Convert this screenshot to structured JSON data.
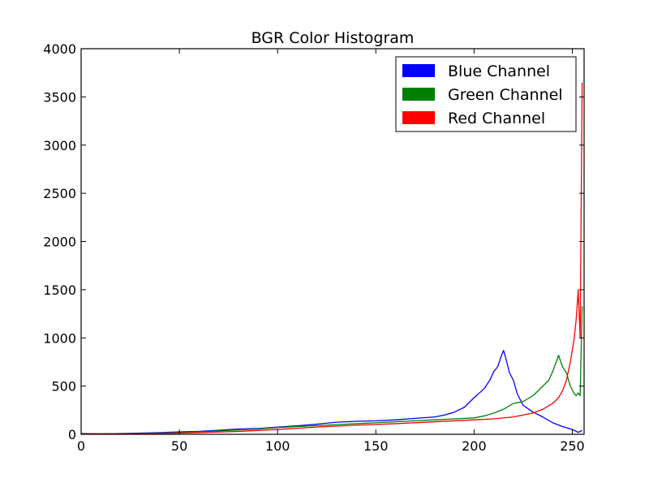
{
  "chart_data": {
    "type": "line",
    "title": "BGR Color Histogram",
    "xlabel": "",
    "ylabel": "",
    "xlim": [
      0,
      256
    ],
    "ylim": [
      0,
      4000
    ],
    "xticks": [
      0,
      50,
      100,
      150,
      200,
      250
    ],
    "yticks": [
      0,
      500,
      1000,
      1500,
      2000,
      2500,
      3000,
      3500,
      4000
    ],
    "grid": false,
    "legend": {
      "placement": "top-right",
      "entries": [
        {
          "label": "Blue Channel",
          "color": "#0000ff"
        },
        {
          "label": "Green Channel",
          "color": "#008000"
        },
        {
          "label": "Red Channel",
          "color": "#ff0000"
        }
      ]
    },
    "series": [
      {
        "name": "Blue Channel",
        "color": "#0000ff",
        "points": [
          [
            0,
            8
          ],
          [
            10,
            5
          ],
          [
            20,
            8
          ],
          [
            30,
            12
          ],
          [
            40,
            18
          ],
          [
            50,
            25
          ],
          [
            60,
            30
          ],
          [
            70,
            42
          ],
          [
            80,
            55
          ],
          [
            90,
            60
          ],
          [
            100,
            75
          ],
          [
            110,
            88
          ],
          [
            120,
            105
          ],
          [
            130,
            125
          ],
          [
            140,
            135
          ],
          [
            150,
            140
          ],
          [
            160,
            150
          ],
          [
            170,
            165
          ],
          [
            180,
            180
          ],
          [
            185,
            200
          ],
          [
            190,
            230
          ],
          [
            195,
            280
          ],
          [
            200,
            380
          ],
          [
            205,
            470
          ],
          [
            208,
            560
          ],
          [
            210,
            650
          ],
          [
            212,
            700
          ],
          [
            214,
            820
          ],
          [
            215,
            870
          ],
          [
            216,
            800
          ],
          [
            218,
            640
          ],
          [
            220,
            560
          ],
          [
            222,
            420
          ],
          [
            225,
            300
          ],
          [
            230,
            230
          ],
          [
            235,
            180
          ],
          [
            240,
            120
          ],
          [
            245,
            80
          ],
          [
            250,
            50
          ],
          [
            253,
            20
          ],
          [
            255,
            40
          ]
        ]
      },
      {
        "name": "Green Channel",
        "color": "#008000",
        "points": [
          [
            0,
            5
          ],
          [
            10,
            5
          ],
          [
            20,
            6
          ],
          [
            30,
            8
          ],
          [
            40,
            12
          ],
          [
            50,
            18
          ],
          [
            60,
            25
          ],
          [
            70,
            35
          ],
          [
            80,
            45
          ],
          [
            90,
            55
          ],
          [
            100,
            70
          ],
          [
            110,
            80
          ],
          [
            120,
            90
          ],
          [
            130,
            100
          ],
          [
            140,
            110
          ],
          [
            150,
            120
          ],
          [
            160,
            130
          ],
          [
            170,
            140
          ],
          [
            180,
            150
          ],
          [
            190,
            160
          ],
          [
            200,
            170
          ],
          [
            205,
            190
          ],
          [
            210,
            220
          ],
          [
            215,
            260
          ],
          [
            220,
            320
          ],
          [
            225,
            340
          ],
          [
            230,
            400
          ],
          [
            235,
            500
          ],
          [
            238,
            560
          ],
          [
            240,
            650
          ],
          [
            242,
            760
          ],
          [
            243,
            820
          ],
          [
            245,
            700
          ],
          [
            247,
            640
          ],
          [
            249,
            500
          ],
          [
            251,
            420
          ],
          [
            252,
            400
          ],
          [
            253,
            430
          ],
          [
            254,
            400
          ],
          [
            255,
            1330
          ]
        ]
      },
      {
        "name": "Red Channel",
        "color": "#ff0000",
        "points": [
          [
            0,
            3
          ],
          [
            20,
            4
          ],
          [
            40,
            8
          ],
          [
            60,
            18
          ],
          [
            80,
            30
          ],
          [
            100,
            50
          ],
          [
            120,
            75
          ],
          [
            140,
            95
          ],
          [
            160,
            110
          ],
          [
            180,
            130
          ],
          [
            200,
            150
          ],
          [
            210,
            160
          ],
          [
            220,
            180
          ],
          [
            225,
            200
          ],
          [
            230,
            220
          ],
          [
            235,
            260
          ],
          [
            240,
            320
          ],
          [
            243,
            380
          ],
          [
            245,
            450
          ],
          [
            247,
            560
          ],
          [
            249,
            750
          ],
          [
            251,
            1000
          ],
          [
            252,
            1200
          ],
          [
            253,
            1500
          ],
          [
            254,
            1000
          ],
          [
            255,
            3650
          ]
        ]
      }
    ]
  }
}
